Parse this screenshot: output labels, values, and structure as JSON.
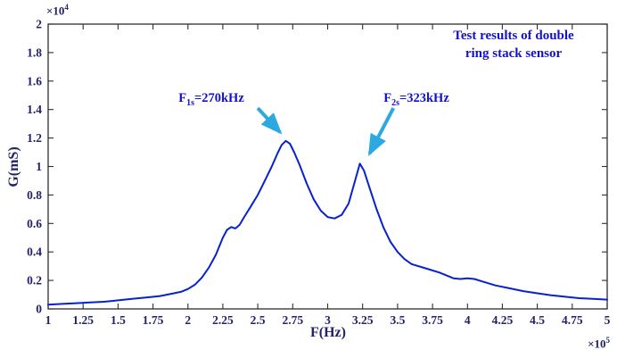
{
  "colors": {
    "curve": "#0622d0",
    "arrow": "#2ba9e0",
    "annotation": "#1212cc",
    "tick_label": "#22226a",
    "axis_label": "#22226a",
    "axis": "#2e2e2e"
  },
  "chart_data": {
    "type": "line",
    "title": "Test results of double ring stack sensor",
    "title_lines": [
      "Test results of double",
      "ring stack sensor"
    ],
    "xlabel": "F(Hz)",
    "ylabel": "G(mS)",
    "xlim": [
      1,
      5
    ],
    "ylim": [
      0,
      2
    ],
    "grid": false,
    "legend_position": "none",
    "x_exponent_label": {
      "base": "×10",
      "exp": "5"
    },
    "y_exponent_label": {
      "base": "×10",
      "exp": "4"
    },
    "x_tick_labels": [
      "1",
      "1.25",
      "1.5",
      "1.75",
      "2",
      "2.25",
      "2.5",
      "2.75",
      "3",
      "3.25",
      "3.5",
      "3.75",
      "4",
      "4.25",
      "4.5",
      "4.75",
      "5"
    ],
    "y_tick_labels": [
      "0",
      "0.2",
      "0.4",
      "0.6",
      "0.8",
      "1",
      "1.2",
      "1.4",
      "1.6",
      "1.8",
      "2"
    ],
    "series": [
      {
        "name": "conductance-curve",
        "x": [
          1.0,
          1.1,
          1.2,
          1.3,
          1.4,
          1.5,
          1.6,
          1.7,
          1.8,
          1.9,
          1.95,
          2.0,
          2.05,
          2.1,
          2.15,
          2.2,
          2.25,
          2.28,
          2.31,
          2.34,
          2.37,
          2.4,
          2.45,
          2.5,
          2.55,
          2.6,
          2.64,
          2.67,
          2.7,
          2.73,
          2.76,
          2.8,
          2.85,
          2.9,
          2.95,
          3.0,
          3.05,
          3.1,
          3.15,
          3.19,
          3.23,
          3.26,
          3.3,
          3.35,
          3.4,
          3.45,
          3.5,
          3.55,
          3.6,
          3.7,
          3.8,
          3.9,
          3.95,
          4.0,
          4.05,
          4.1,
          4.2,
          4.3,
          4.4,
          4.5,
          4.6,
          4.7,
          4.8,
          4.9,
          5.0
        ],
        "y": [
          0.03,
          0.035,
          0.04,
          0.045,
          0.05,
          0.06,
          0.07,
          0.08,
          0.09,
          0.11,
          0.12,
          0.14,
          0.17,
          0.22,
          0.29,
          0.38,
          0.5,
          0.555,
          0.575,
          0.565,
          0.59,
          0.64,
          0.72,
          0.8,
          0.9,
          1.0,
          1.09,
          1.15,
          1.18,
          1.16,
          1.1,
          1.01,
          0.88,
          0.77,
          0.69,
          0.645,
          0.635,
          0.66,
          0.74,
          0.88,
          1.02,
          0.97,
          0.85,
          0.7,
          0.57,
          0.47,
          0.4,
          0.35,
          0.315,
          0.285,
          0.255,
          0.215,
          0.21,
          0.215,
          0.21,
          0.195,
          0.165,
          0.145,
          0.125,
          0.11,
          0.095,
          0.085,
          0.075,
          0.07,
          0.065
        ]
      }
    ],
    "annotations": [
      {
        "text": "F1s=270kHz",
        "prefix": "F",
        "sub": "1s",
        "rest": "=270kHz",
        "arrow_from": [
          2.5,
          1.41
        ],
        "arrow_to": [
          2.66,
          1.24
        ]
      },
      {
        "text": "F2s=323kHz",
        "prefix": "F",
        "sub": "2s",
        "rest": "=323kHz",
        "arrow_from": [
          3.47,
          1.41
        ],
        "arrow_to": [
          3.3,
          1.09
        ]
      }
    ],
    "peaks": [
      {
        "x": 2.7,
        "y": 1.18,
        "frequency_kHz": 270
      },
      {
        "x": 3.23,
        "y": 1.02,
        "frequency_kHz": 323
      }
    ]
  }
}
